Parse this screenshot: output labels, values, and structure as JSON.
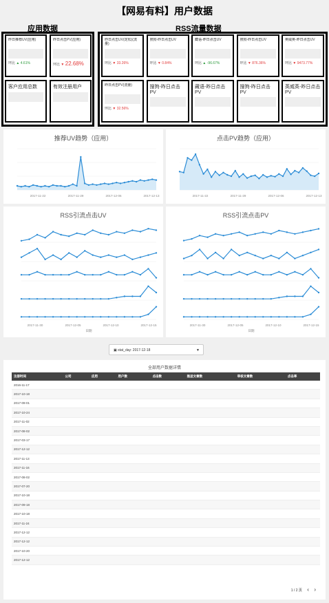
{
  "page_title": "【网易有料】用户数据",
  "app_section": {
    "label": "应用数据",
    "cards": [
      {
        "title": "昨日推荐UV(应用)",
        "compare": "环比",
        "delta": "4.61%",
        "dir": "up",
        "big": false
      },
      {
        "title": "昨日点击PV(应用)",
        "compare": "环比",
        "delta": "22.68%",
        "dir": "dn",
        "big": true
      },
      {
        "title": "客户应用总数",
        "compare": "",
        "delta": "",
        "dir": "",
        "big": false
      },
      {
        "title": "有效注册用户",
        "compare": "",
        "delta": "",
        "dir": "",
        "big": false
      }
    ]
  },
  "rss_section": {
    "label": "RSS流量数据",
    "cards": [
      {
        "title": "昨日点击UV(定松)(流量)",
        "compare": "环比",
        "delta": "33.26%",
        "dir": "dn"
      },
      {
        "title": "搜狗-昨日点击UV",
        "compare": "环比",
        "delta": "0.84%",
        "dir": "dn"
      },
      {
        "title": "藏语-昨日点击UV",
        "compare": "环比",
        "delta": "-96.67%",
        "dir": "up"
      },
      {
        "title": "搜狗-昨日点击UV",
        "compare": "环比",
        "delta": "876.36%",
        "dir": "dn"
      },
      {
        "title": "英威英-昨日点击UV",
        "compare": "环比",
        "delta": "9473.77%",
        "dir": "dn"
      },
      {
        "title": "昨日点击PV(流量)",
        "compare": "环比",
        "delta": "32.56%",
        "dir": "dn"
      },
      {
        "title": "搜狗-昨日点击PV",
        "compare": "",
        "delta": "",
        "dir": ""
      },
      {
        "title": "藏语-昨日点击PV",
        "compare": "",
        "delta": "",
        "dir": ""
      },
      {
        "title": "搜狗-昨日点击PV",
        "compare": "",
        "delta": "",
        "dir": ""
      },
      {
        "title": "英威英-昨日点击PV",
        "compare": "",
        "delta": "",
        "dir": ""
      }
    ]
  },
  "colors": {
    "line": "#2b8cd6",
    "point": "#2b8cd6",
    "area": "#d6eaf8",
    "header": "#444444"
  },
  "chart_data": [
    {
      "type": "line",
      "title": "推荐UV趋势（应用）",
      "x_ticks": [
        "2017-11-22",
        "2017-11-29",
        "2017-12-06",
        "2017-12-13"
      ],
      "values": [
        5,
        4,
        5,
        4,
        6,
        5,
        4,
        5,
        4,
        6,
        5,
        5,
        4,
        5,
        7,
        5,
        40,
        8,
        6,
        7,
        6,
        7,
        8,
        7,
        8,
        9,
        8,
        9,
        10,
        11,
        10,
        12,
        11,
        12,
        13,
        12
      ],
      "ylim": [
        0,
        50
      ]
    },
    {
      "type": "line",
      "title": "点击PV趋势（应用）",
      "x_ticks": [
        "2017-11-22",
        "2017-11-29",
        "2017-12-06",
        "2017-12-13"
      ],
      "values": [
        40,
        38,
        70,
        65,
        78,
        55,
        35,
        45,
        28,
        40,
        32,
        38,
        33,
        30,
        42,
        28,
        35,
        26,
        30,
        32,
        25,
        33,
        28,
        31,
        29,
        35,
        30,
        46,
        34,
        42,
        38,
        48,
        41,
        32,
        30,
        36
      ],
      "ylim": [
        0,
        90
      ]
    },
    {
      "type": "line",
      "title": "RSS引流点击UV",
      "xlabel": "日期",
      "x_ticks": [
        "2017-11-30",
        "2017-12-05",
        "2017-12-10",
        "2017-12-15"
      ],
      "series": [
        {
          "values": [
            20,
            21,
            24,
            22,
            26,
            24,
            23,
            25,
            24,
            27,
            25,
            24,
            26,
            25,
            27,
            26,
            28,
            27
          ]
        },
        {
          "values": [
            14,
            16,
            18,
            13,
            15,
            13,
            16,
            14,
            17,
            15,
            14,
            15,
            14,
            15,
            13,
            14,
            15,
            16
          ]
        },
        {
          "values": [
            10,
            10,
            11,
            10,
            10,
            10,
            10,
            11,
            10,
            10,
            10,
            11,
            10,
            10,
            11,
            10,
            12,
            9
          ]
        },
        {
          "values": [
            4,
            4,
            4,
            4,
            4,
            4,
            4,
            4,
            4,
            4,
            4,
            4,
            5,
            6,
            6,
            6,
            14,
            9
          ]
        },
        {
          "values": [
            1,
            1,
            1,
            1,
            1,
            1,
            1,
            1,
            1,
            1,
            1,
            1,
            1,
            1,
            1,
            1,
            2,
            5
          ]
        }
      ]
    },
    {
      "type": "line",
      "title": "RSS引流点击PV",
      "xlabel": "日期",
      "x_ticks": [
        "2017-11-30",
        "2017-12-05",
        "2017-12-10",
        "2017-12-15"
      ],
      "series": [
        {
          "values": [
            22,
            23,
            25,
            24,
            26,
            25,
            26,
            27,
            25,
            26,
            27,
            26,
            28,
            27,
            26,
            27,
            28,
            29
          ]
        },
        {
          "values": [
            14,
            15,
            17,
            14,
            16,
            14,
            17,
            15,
            16,
            15,
            14,
            15,
            14,
            16,
            14,
            15,
            16,
            17
          ]
        },
        {
          "values": [
            10,
            10,
            11,
            10,
            11,
            10,
            10,
            11,
            10,
            11,
            10,
            10,
            11,
            10,
            11,
            10,
            12,
            9
          ]
        },
        {
          "values": [
            4,
            4,
            4,
            4,
            4,
            4,
            4,
            4,
            4,
            4,
            4,
            4,
            5,
            6,
            6,
            6,
            14,
            9
          ]
        },
        {
          "values": [
            1,
            1,
            1,
            1,
            1,
            1,
            1,
            1,
            1,
            1,
            1,
            1,
            1,
            1,
            1,
            1,
            2,
            5
          ]
        }
      ]
    }
  ],
  "filter": {
    "label": "stat_day: 2017-12-18"
  },
  "table": {
    "title": "全部用户数据详情",
    "headers": [
      "注册时间",
      "公司",
      "应用",
      "用户数",
      "点击数",
      "推送文章数",
      "审核文章数",
      "点击率"
    ],
    "rows": [
      [
        "2016-11-17",
        "",
        "",
        "",
        "",
        "",
        "",
        ""
      ],
      [
        "2017-10-18",
        "",
        "",
        "",
        "",
        "",
        "",
        ""
      ],
      [
        "2017-09-01",
        "",
        "",
        "",
        "",
        "",
        "",
        ""
      ],
      [
        "2017-10-24",
        "",
        "",
        "",
        "",
        "",
        "",
        ""
      ],
      [
        "2017-11-02",
        "",
        "",
        "",
        "",
        "",
        "",
        ""
      ],
      [
        "2017-08-02",
        "",
        "",
        "",
        "",
        "",
        "",
        ""
      ],
      [
        "2017-03-17",
        "",
        "",
        "",
        "",
        "",
        "",
        ""
      ],
      [
        "2017-12-12",
        "",
        "",
        "",
        "",
        "",
        "",
        ""
      ],
      [
        "2017-11-13",
        "",
        "",
        "",
        "",
        "",
        "",
        ""
      ],
      [
        "2017-11-16",
        "",
        "",
        "",
        "",
        "",
        "",
        ""
      ],
      [
        "2017-08-02",
        "",
        "",
        "",
        "",
        "",
        "",
        ""
      ],
      [
        "2017-07-20",
        "",
        "",
        "",
        "",
        "",
        "",
        ""
      ],
      [
        "2017-10-18",
        "",
        "",
        "",
        "",
        "",
        "",
        ""
      ],
      [
        "2017-09-18",
        "",
        "",
        "",
        "",
        "",
        "",
        ""
      ],
      [
        "2017-10-18",
        "",
        "",
        "",
        "",
        "",
        "",
        ""
      ],
      [
        "2017-11-24",
        "",
        "",
        "",
        "",
        "",
        "",
        ""
      ],
      [
        "2017-12-12",
        "",
        "",
        "",
        "",
        "",
        "",
        ""
      ],
      [
        "2017-12-12",
        "",
        "",
        "",
        "",
        "",
        "",
        ""
      ],
      [
        "2017-10-20",
        "",
        "",
        "",
        "",
        "",
        "",
        ""
      ],
      [
        "2017-12-12",
        "",
        "",
        "",
        "",
        "",
        "",
        ""
      ]
    ]
  },
  "pager": {
    "label": "1 / 2 页",
    "prev_icon": "chevron-left-icon",
    "next_icon": "chevron-right-icon"
  }
}
